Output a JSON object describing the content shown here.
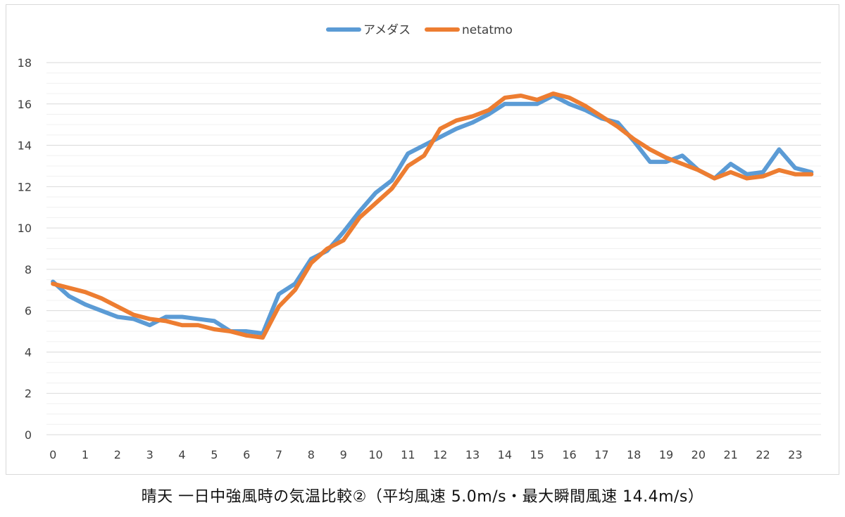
{
  "chart_data": {
    "type": "line",
    "title": "",
    "caption": "晴天 一日中強風時の気温比較②（平均風速 5.0m/s・最大瞬間風速 14.4m/s）",
    "xlabel": "",
    "ylabel": "",
    "ylim": [
      0,
      18
    ],
    "y_ticks": [
      "0",
      "2",
      "4",
      "6",
      "8",
      "10",
      "12",
      "14",
      "16",
      "18"
    ],
    "x_ticks": [
      "0",
      "1",
      "2",
      "3",
      "4",
      "5",
      "6",
      "7",
      "8",
      "9",
      "10",
      "11",
      "12",
      "13",
      "14",
      "15",
      "16",
      "17",
      "18",
      "19",
      "20",
      "21",
      "22",
      "23"
    ],
    "grid": true,
    "legend_position": "top",
    "x": [
      0,
      0.5,
      1,
      1.5,
      2,
      2.5,
      3,
      3.5,
      4,
      4.5,
      5,
      5.5,
      6,
      6.5,
      7,
      7.5,
      8,
      8.5,
      9,
      9.5,
      10,
      10.5,
      11,
      11.5,
      12,
      12.5,
      13,
      13.5,
      14,
      14.5,
      15,
      15.5,
      16,
      16.5,
      17,
      17.5,
      18,
      18.5,
      19,
      19.5,
      20,
      20.5,
      21,
      21.5,
      22,
      22.5,
      23,
      23.5
    ],
    "series": [
      {
        "name": "アメダス",
        "color": "#5b9bd5",
        "values": [
          7.4,
          6.7,
          6.3,
          6.0,
          5.7,
          5.6,
          5.3,
          5.7,
          5.7,
          5.6,
          5.5,
          5.0,
          5.0,
          4.9,
          6.8,
          7.3,
          8.5,
          8.9,
          9.8,
          10.8,
          11.7,
          12.3,
          13.6,
          14.0,
          14.4,
          14.8,
          15.1,
          15.5,
          16.0,
          16.0,
          16.0,
          16.4,
          16.0,
          15.7,
          15.3,
          15.1,
          14.2,
          13.2,
          13.2,
          13.5,
          12.8,
          12.4,
          13.1,
          12.6,
          12.7,
          13.8,
          12.9,
          12.7
        ]
      },
      {
        "name": "netatmo",
        "color": "#ed7d31",
        "values": [
          7.3,
          7.1,
          6.9,
          6.6,
          6.2,
          5.8,
          5.6,
          5.5,
          5.3,
          5.3,
          5.1,
          5.0,
          4.8,
          4.7,
          6.2,
          7.0,
          8.3,
          9.0,
          9.4,
          10.5,
          11.2,
          11.9,
          13.0,
          13.5,
          14.8,
          15.2,
          15.4,
          15.7,
          16.3,
          16.4,
          16.2,
          16.5,
          16.3,
          15.9,
          15.4,
          14.9,
          14.3,
          13.8,
          13.4,
          13.1,
          12.8,
          12.4,
          12.7,
          12.4,
          12.5,
          12.8,
          12.6,
          12.6
        ]
      }
    ]
  }
}
